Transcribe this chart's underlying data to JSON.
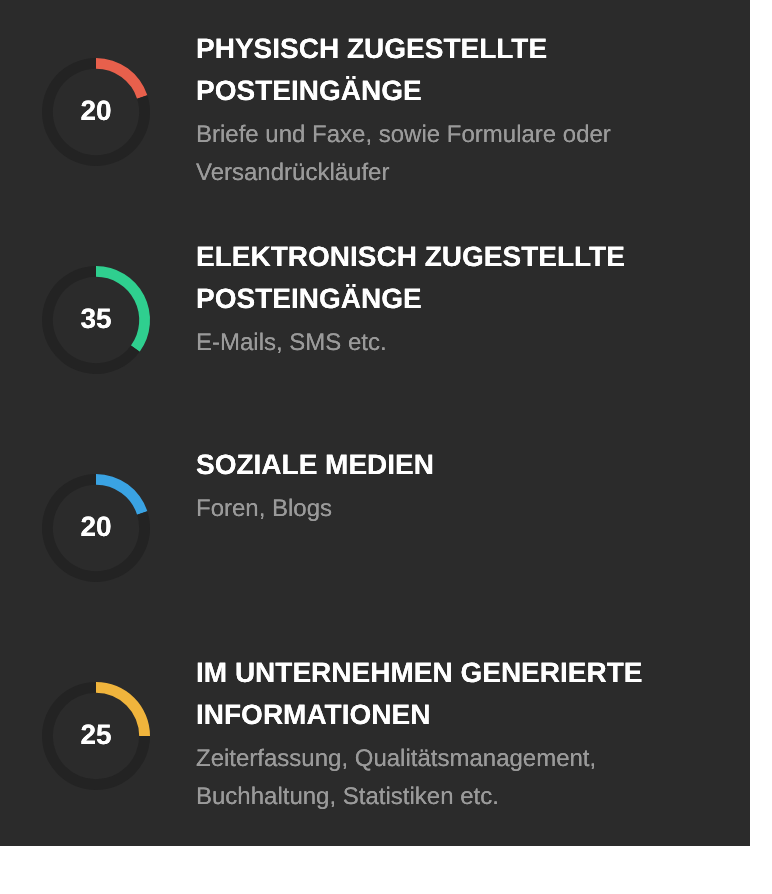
{
  "chart_data": [
    {
      "type": "donut",
      "title": "PHYSISCH ZUGESTELLTE POSTEINGÄNGE",
      "subtitle": "Briefe und Faxe, sowie Formulare oder Versandrückläufer",
      "categories": [
        null,
        null
      ],
      "values": [
        20,
        80
      ],
      "colors": [
        "#e8604c",
        "#232323"
      ],
      "value_labels": [
        "20",
        null
      ]
    },
    {
      "type": "donut",
      "title": "ELEKTRONISCH ZUGESTELLTE POSTEINGÄNGE",
      "subtitle": "E-Mails, SMS etc.",
      "categories": [
        null,
        null
      ],
      "values": [
        35,
        65
      ],
      "colors": [
        "#2fcf8f",
        "#232323"
      ],
      "value_labels": [
        "35",
        null
      ]
    },
    {
      "type": "donut",
      "title": "SOZIALE MEDIEN",
      "subtitle": "Foren, Blogs",
      "categories": [
        null,
        null
      ],
      "values": [
        20,
        80
      ],
      "colors": [
        "#3aa3e3",
        "#232323"
      ],
      "value_labels": [
        "20",
        null
      ]
    },
    {
      "type": "donut",
      "title": "IM UNTERNEHMEN GENERIERTE INFORMATIONEN",
      "subtitle": "Zeiterfassung, Qualitätsmanagement, Buchhaltung, Statistiken etc.",
      "categories": [
        null,
        null
      ],
      "values": [
        25,
        75
      ],
      "colors": [
        "#f0b43c",
        "#232323"
      ],
      "value_labels": [
        "25",
        null
      ]
    }
  ]
}
